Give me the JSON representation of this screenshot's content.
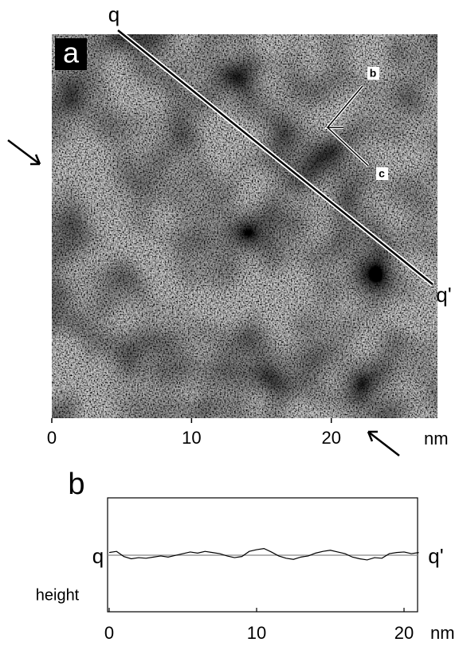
{
  "chart_data": [
    {
      "type": "image",
      "label": "a",
      "xlim": [
        0,
        27.6
      ],
      "xticks": [
        0,
        10,
        20
      ],
      "x_unit": "nm",
      "annotations": [
        "q",
        "q'",
        "b",
        "c"
      ]
    },
    {
      "type": "line",
      "label": "b",
      "ylabel": "height",
      "x_unit": "nm",
      "color": "#000000",
      "annotations": [
        "q",
        "q'"
      ],
      "x": [
        0,
        0.5,
        1,
        1.5,
        2,
        2.5,
        3,
        3.5,
        4,
        4.5,
        5,
        5.5,
        6,
        6.5,
        7,
        7.5,
        8,
        8.5,
        9,
        9.5,
        10,
        10.5,
        11,
        11.5,
        12,
        12.5,
        13,
        13.5,
        14,
        14.5,
        15,
        15.5,
        16,
        16.5,
        17,
        17.5,
        18,
        18.5,
        19,
        19.5,
        20,
        20.5,
        21
      ],
      "values": [
        0.04,
        0.06,
        -0.03,
        -0.07,
        -0.05,
        -0.06,
        -0.04,
        -0.02,
        -0.04,
        -0.01,
        0.02,
        0.05,
        0.03,
        0.06,
        0.04,
        0.02,
        -0.02,
        -0.05,
        -0.03,
        0.06,
        0.09,
        0.11,
        0.05,
        -0.02,
        -0.06,
        -0.08,
        -0.04,
        -0.02,
        0.03,
        0.06,
        0.08,
        0.05,
        0.02,
        -0.04,
        -0.07,
        -0.09,
        -0.05,
        -0.06,
        0.02,
        0.04,
        0.05,
        0.02,
        0.04
      ],
      "xlim": [
        0,
        21
      ],
      "ylim": [
        -1,
        1
      ],
      "xticks": [
        0,
        10,
        20
      ]
    }
  ]
}
